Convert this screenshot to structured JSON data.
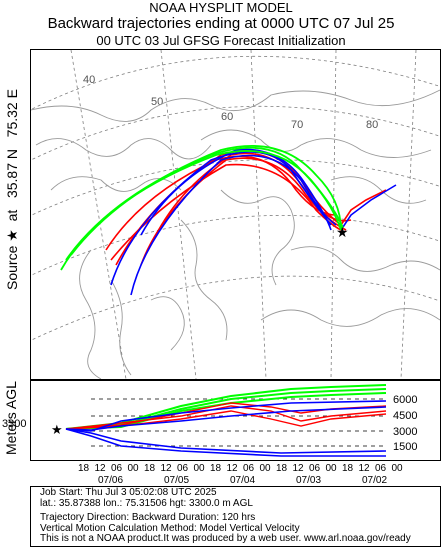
{
  "header": {
    "line1": "NOAA HYSPLIT MODEL",
    "line2": "Backward trajectories ending at 0000 UTC 07 Jul 25",
    "line3": "00 UTC 03 Jul    GFSG  Forecast Initialization"
  },
  "left_label": {
    "source": "Source",
    "at": "at",
    "lat": "35.87 N",
    "lon": "75.32 E"
  },
  "map": {
    "lat_labels": [
      "40",
      "50",
      "60",
      "70",
      "80"
    ],
    "colors": {
      "red": "#ff0000",
      "blue": "#0000ff",
      "green": "#00ff00",
      "grid": "#7f7f7f",
      "land": "#9a9a9a"
    }
  },
  "height_panel": {
    "axis_title": "Meters AGL",
    "source_height": "3300",
    "right_ticks": [
      "6000",
      "4500",
      "3000",
      "1500"
    ],
    "hour_labels": [
      "18",
      "12",
      "06",
      "00",
      "18",
      "12",
      "06",
      "00",
      "18",
      "12",
      "06",
      "00",
      "18",
      "12",
      "06",
      "00",
      "18",
      "12",
      "06",
      "00"
    ],
    "date_labels": [
      "07/06",
      "07/05",
      "07/04",
      "07/03",
      "07/02"
    ]
  },
  "footer": {
    "line1": "Job Start: Thu Jul  3 05:02:08 UTC 2025",
    "line2": "lat.: 35.87388   lon.: 75.31506   hgt: 3300.0 m AGL",
    "line3": "Trajectory Direction: Backward        Duration: 120 hrs",
    "line4": "Vertical Motion Calculation Method: Model Vertical Velocity",
    "line5": "This is not a NOAA product.It was produced by a web user. www.arl.noaa.gov/ready"
  }
}
